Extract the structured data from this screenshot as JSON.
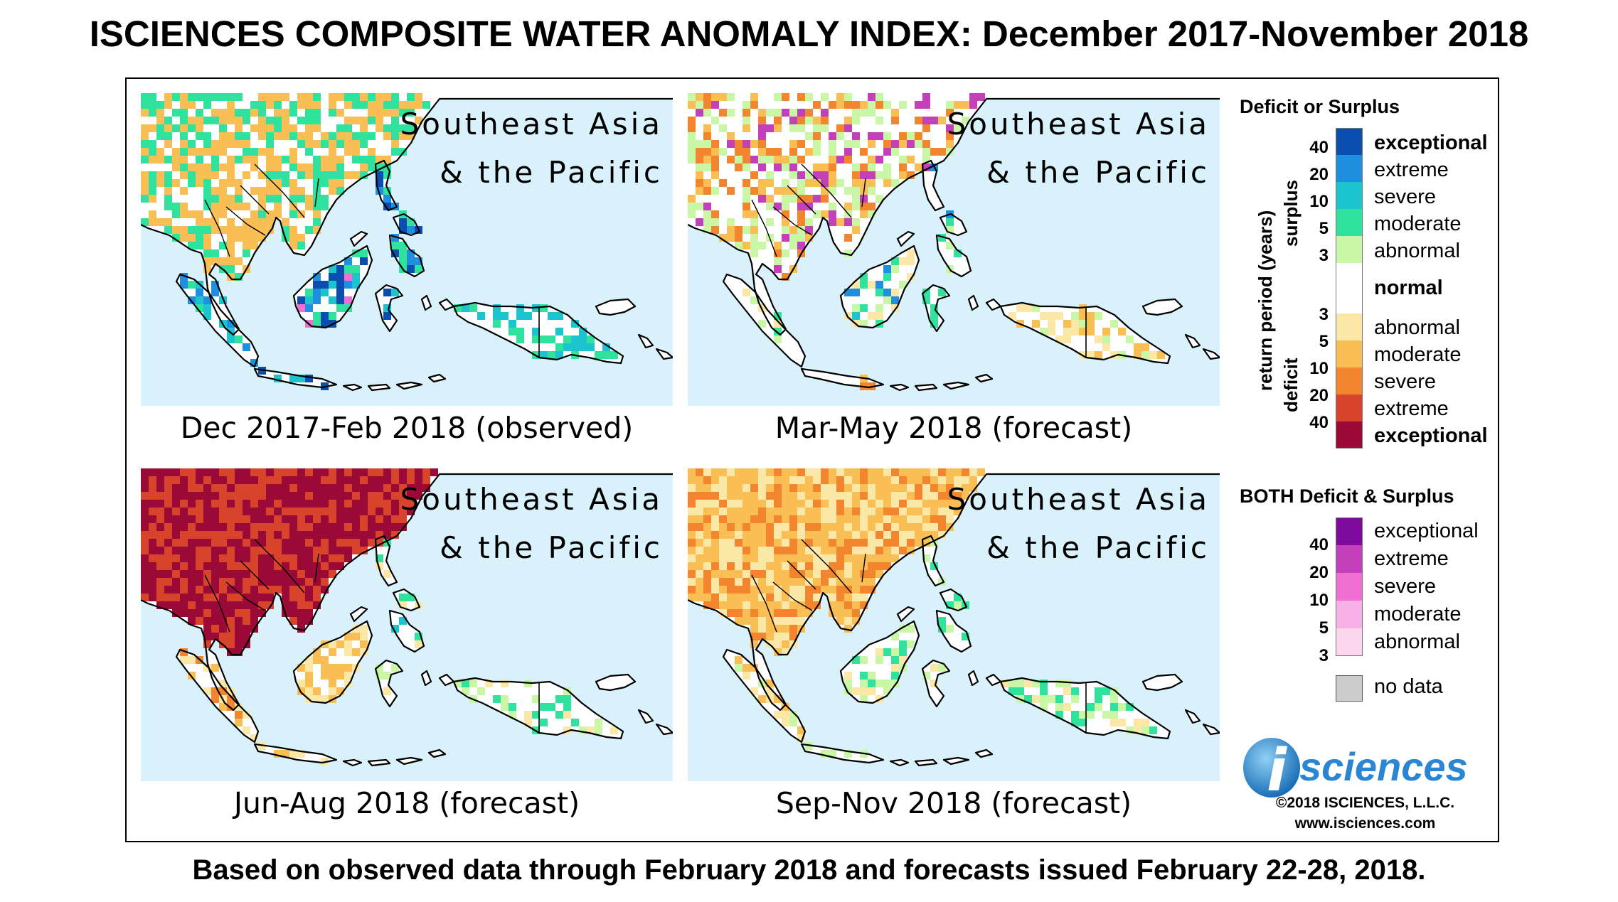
{
  "title": "ISCIENCES COMPOSITE WATER ANOMALY INDEX: December 2017-November 2018",
  "footer": "Based on observed data through February 2018 and forecasts issued February 22-28, 2018.",
  "panels": [
    {
      "region_line1": "Southeast Asia",
      "region_line2": "& the Pacific",
      "caption": "Dec 2017-Feb 2018 (observed)",
      "scheme": "observed"
    },
    {
      "region_line1": "Southeast Asia",
      "region_line2": "& the Pacific",
      "caption": "Mar-May 2018 (forecast)",
      "scheme": "marmay"
    },
    {
      "region_line1": "Southeast Asia",
      "region_line2": "& the Pacific",
      "caption": "Jun-Aug 2018 (forecast)",
      "scheme": "junaug"
    },
    {
      "region_line1": "Southeast Asia",
      "region_line2": "& the Pacific",
      "caption": "Sep-Nov 2018 (forecast)",
      "scheme": "sepnov"
    }
  ],
  "legend": {
    "title1": "Deficit or Surplus",
    "axis_label": "return period (years)",
    "surplus_label": "surplus",
    "deficit_label": "deficit",
    "surplus_ticks": [
      "40",
      "20",
      "10",
      "5",
      "3"
    ],
    "deficit_ticks": [
      "3",
      "5",
      "10",
      "20",
      "40"
    ],
    "categories": [
      {
        "label": "exceptional",
        "color": "#0a4fb0"
      },
      {
        "label": "extreme",
        "color": "#1f8fe0"
      },
      {
        "label": "severe",
        "color": "#1cc4cf"
      },
      {
        "label": "moderate",
        "color": "#2fe39f"
      },
      {
        "label": "abnormal",
        "color": "#c9f7a6"
      },
      {
        "label": "normal",
        "color": "#ffffff"
      },
      {
        "label": "abnormal",
        "color": "#fbe7a6"
      },
      {
        "label": "moderate",
        "color": "#f9bf55"
      },
      {
        "label": "severe",
        "color": "#f4852f"
      },
      {
        "label": "extreme",
        "color": "#d8432b"
      },
      {
        "label": "exceptional",
        "color": "#9b0a37"
      }
    ],
    "title2": "BOTH Deficit & Surplus",
    "both_ticks": [
      "40",
      "20",
      "10",
      "5",
      "3"
    ],
    "both_categories": [
      {
        "label": "exceptional",
        "color": "#7f0a9e"
      },
      {
        "label": "extreme",
        "color": "#c43fba"
      },
      {
        "label": "severe",
        "color": "#f26fd2"
      },
      {
        "label": "moderate",
        "color": "#f8b0e6"
      },
      {
        "label": "abnormal",
        "color": "#fbd8ee"
      }
    ],
    "nodata_label": "no data",
    "nodata_color": "#cccccc"
  },
  "logo_i": "i",
  "logo_text": "sciences",
  "copyright": "©2018 ISCIENCES, L.L.C.",
  "website": "www.isciences.com"
}
